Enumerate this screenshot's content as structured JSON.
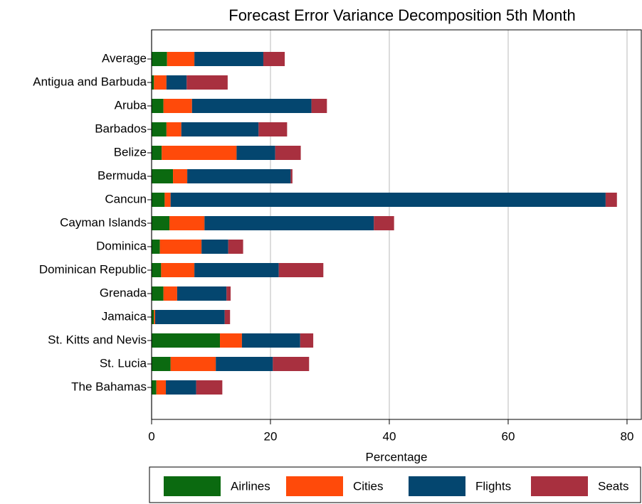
{
  "chart_data": {
    "type": "bar",
    "orientation": "horizontal",
    "stacked": true,
    "title": "Forecast Error Variance Decomposition 5th Month",
    "x_label": "Percentage",
    "categories": [
      "Average",
      "Antigua and Barbuda",
      "Aruba",
      "Barbados",
      "Belize",
      "Bermuda",
      "Cancun",
      "Cayman Islands",
      "Dominica",
      "Dominican Republic",
      "Grenada",
      "Jamaica",
      "St. Kitts and Nevis",
      "St. Lucia",
      "The Bahamas"
    ],
    "series": [
      {
        "name": "Airlines",
        "color": "#0b6a10",
        "values": [
          2.6,
          0.4,
          2.0,
          2.5,
          1.7,
          3.6,
          2.2,
          3.0,
          1.4,
          1.6,
          2.0,
          0.4,
          11.5,
          3.2,
          0.8
        ]
      },
      {
        "name": "Cities",
        "color": "#ff4a0a",
        "values": [
          4.6,
          2.1,
          4.8,
          2.5,
          12.6,
          2.4,
          1.0,
          5.9,
          7.0,
          5.6,
          2.3,
          0.2,
          3.7,
          7.6,
          1.6
        ]
      },
      {
        "name": "Flights",
        "color": "#04466f",
        "values": [
          11.6,
          3.4,
          20.1,
          13.0,
          6.5,
          17.4,
          73.2,
          28.5,
          4.5,
          14.2,
          8.3,
          11.7,
          9.8,
          9.6,
          5.1
        ]
      },
      {
        "name": "Seats",
        "color": "#a8303f",
        "values": [
          3.6,
          6.9,
          2.6,
          4.8,
          4.3,
          0.3,
          1.9,
          3.4,
          2.5,
          7.5,
          0.7,
          0.9,
          2.2,
          6.1,
          4.4
        ]
      }
    ],
    "xlim": [
      0,
      82.4
    ],
    "xticks": [
      0,
      20,
      40,
      60,
      80
    ],
    "grid": true,
    "legend_position": "bottom"
  }
}
